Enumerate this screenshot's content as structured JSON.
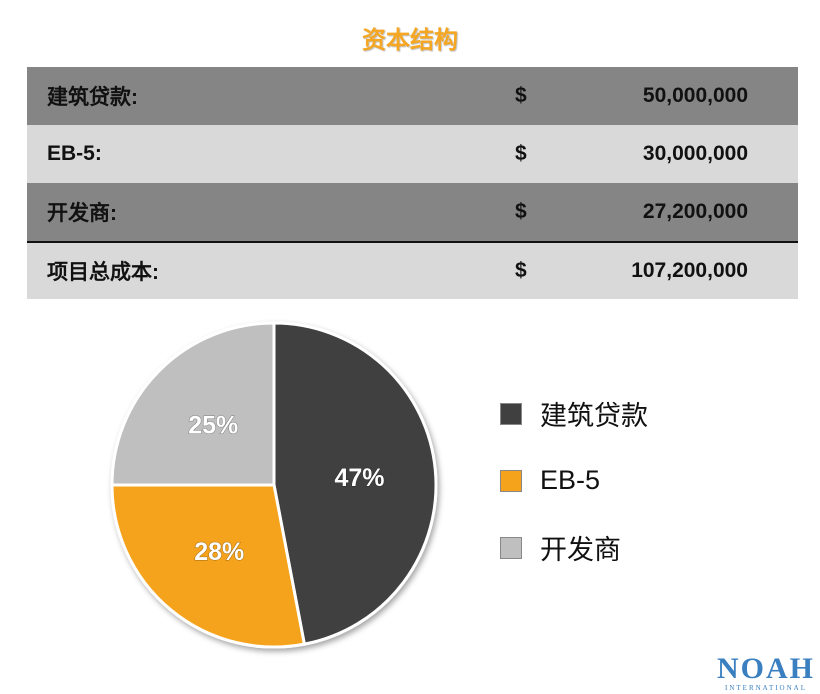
{
  "title": "资本结构",
  "table": {
    "rows": [
      {
        "label": "建筑贷款:",
        "currency": "$",
        "amount": "50,000,000"
      },
      {
        "label": "EB-5:",
        "currency": "$",
        "amount": "30,000,000"
      },
      {
        "label": "开发商:",
        "currency": "$",
        "amount": "27,200,000"
      },
      {
        "label": "项目总成本:",
        "currency": "$",
        "amount": "107,200,000"
      }
    ]
  },
  "chart_data": {
    "type": "pie",
    "title": "",
    "categories": [
      "建筑贷款",
      "EB-5",
      "开发商"
    ],
    "values": [
      47,
      28,
      25
    ],
    "labels": [
      "47%",
      "28%",
      "25%"
    ],
    "colors": [
      "#404040",
      "#F5A31A",
      "#BFBFBF"
    ],
    "legend_placement": "right"
  },
  "logo": {
    "main": "NOAH",
    "sub": "INTERNATIONAL"
  }
}
